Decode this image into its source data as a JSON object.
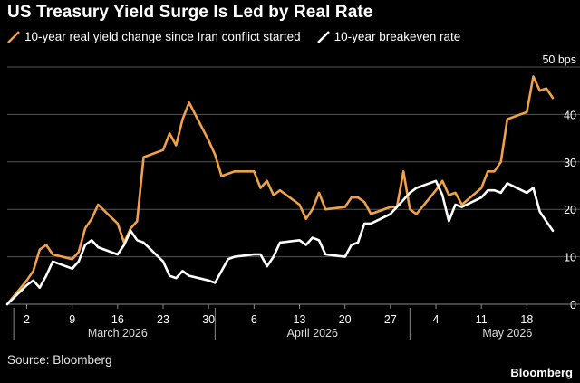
{
  "title": "US Treasury Yield Surge Is Led by Real Rate",
  "source": "Source: Bloomberg",
  "brand": "Bloomberg",
  "colors": {
    "background": "#000000",
    "orange": "#f0a14a",
    "white": "#ffffff",
    "grid": "#555555"
  },
  "chart_data": {
    "type": "line",
    "y_unit": "bps",
    "ylim": [
      0,
      50
    ],
    "yticks": [
      0,
      10,
      20,
      30,
      40,
      50
    ],
    "ytick_labels": [
      "0",
      "10",
      "20",
      "30",
      "40",
      "50 bps"
    ],
    "grid": true,
    "legend_position": "top",
    "xlim": [
      "2026-02-27",
      "2026-05-22"
    ],
    "xticks": [
      {
        "date": "2026-03-02",
        "label": "2"
      },
      {
        "date": "2026-03-09",
        "label": "9"
      },
      {
        "date": "2026-03-16",
        "label": "16"
      },
      {
        "date": "2026-03-23",
        "label": "23"
      },
      {
        "date": "2026-03-30",
        "label": "30"
      },
      {
        "date": "2026-04-06",
        "label": "6"
      },
      {
        "date": "2026-04-13",
        "label": "13"
      },
      {
        "date": "2026-04-20",
        "label": "20"
      },
      {
        "date": "2026-04-27",
        "label": "27"
      },
      {
        "date": "2026-05-04",
        "label": "4"
      },
      {
        "date": "2026-05-11",
        "label": "11"
      },
      {
        "date": "2026-05-18",
        "label": "18"
      }
    ],
    "month_labels": [
      {
        "label": "March 2026",
        "center": "2026-03-16"
      },
      {
        "label": "April 2026",
        "center": "2026-04-15"
      },
      {
        "label": "May 2026",
        "center": "2026-05-15"
      }
    ],
    "month_separators": [
      "2026-02-28",
      "2026-03-31",
      "2026-04-30"
    ],
    "series": [
      {
        "name": "10-year real yield change since Iran conflict started",
        "color": "#f0a14a",
        "points": [
          [
            "2026-02-27",
            0
          ],
          [
            "2026-03-02",
            5
          ],
          [
            "2026-03-03",
            7
          ],
          [
            "2026-03-04",
            11.5
          ],
          [
            "2026-03-05",
            12.5
          ],
          [
            "2026-03-06",
            10.5
          ],
          [
            "2026-03-09",
            9.5
          ],
          [
            "2026-03-10",
            11
          ],
          [
            "2026-03-11",
            16
          ],
          [
            "2026-03-12",
            18
          ],
          [
            "2026-03-13",
            21
          ],
          [
            "2026-03-16",
            17
          ],
          [
            "2026-03-17",
            13
          ],
          [
            "2026-03-18",
            16
          ],
          [
            "2026-03-19",
            17.5
          ],
          [
            "2026-03-20",
            31
          ],
          [
            "2026-03-23",
            32.5
          ],
          [
            "2026-03-24",
            36
          ],
          [
            "2026-03-25",
            33.5
          ],
          [
            "2026-03-26",
            39
          ],
          [
            "2026-03-27",
            42.5
          ],
          [
            "2026-03-30",
            34.5
          ],
          [
            "2026-03-31",
            31.5
          ],
          [
            "2026-04-01",
            27
          ],
          [
            "2026-04-02",
            27.5
          ],
          [
            "2026-04-03",
            28
          ],
          [
            "2026-04-06",
            28
          ],
          [
            "2026-04-07",
            24.5
          ],
          [
            "2026-04-08",
            26
          ],
          [
            "2026-04-09",
            23
          ],
          [
            "2026-04-10",
            24
          ],
          [
            "2026-04-13",
            21
          ],
          [
            "2026-04-14",
            18
          ],
          [
            "2026-04-15",
            20
          ],
          [
            "2026-04-16",
            23.5
          ],
          [
            "2026-04-17",
            20
          ],
          [
            "2026-04-20",
            20.5
          ],
          [
            "2026-04-21",
            22.5
          ],
          [
            "2026-04-22",
            22.5
          ],
          [
            "2026-04-23",
            21.5
          ],
          [
            "2026-04-24",
            19
          ],
          [
            "2026-04-27",
            20.5
          ],
          [
            "2026-04-28",
            20.5
          ],
          [
            "2026-04-29",
            28
          ],
          [
            "2026-04-30",
            20
          ],
          [
            "2026-05-01",
            19
          ],
          [
            "2026-05-04",
            24
          ],
          [
            "2026-05-05",
            26
          ],
          [
            "2026-05-06",
            23
          ],
          [
            "2026-05-07",
            23.5
          ],
          [
            "2026-05-08",
            21
          ],
          [
            "2026-05-11",
            24.5
          ],
          [
            "2026-05-12",
            28
          ],
          [
            "2026-05-13",
            28
          ],
          [
            "2026-05-14",
            30
          ],
          [
            "2026-05-15",
            39
          ],
          [
            "2026-05-18",
            40.5
          ],
          [
            "2026-05-19",
            48
          ],
          [
            "2026-05-20",
            45
          ],
          [
            "2026-05-21",
            45.5
          ],
          [
            "2026-05-22",
            43.5
          ]
        ]
      },
      {
        "name": "10-year breakeven rate",
        "color": "#ffffff",
        "points": [
          [
            "2026-02-27",
            0
          ],
          [
            "2026-03-02",
            4
          ],
          [
            "2026-03-03",
            5
          ],
          [
            "2026-03-04",
            3.5
          ],
          [
            "2026-03-05",
            6
          ],
          [
            "2026-03-06",
            9
          ],
          [
            "2026-03-09",
            7.5
          ],
          [
            "2026-03-10",
            9
          ],
          [
            "2026-03-11",
            12.5
          ],
          [
            "2026-03-12",
            13.5
          ],
          [
            "2026-03-13",
            12
          ],
          [
            "2026-03-16",
            10.5
          ],
          [
            "2026-03-17",
            12.5
          ],
          [
            "2026-03-18",
            15.5
          ],
          [
            "2026-03-19",
            13.5
          ],
          [
            "2026-03-20",
            13
          ],
          [
            "2026-03-23",
            9
          ],
          [
            "2026-03-24",
            6
          ],
          [
            "2026-03-25",
            5.5
          ],
          [
            "2026-03-26",
            7
          ],
          [
            "2026-03-27",
            6
          ],
          [
            "2026-03-30",
            5
          ],
          [
            "2026-03-31",
            4.5
          ],
          [
            "2026-04-01",
            7
          ],
          [
            "2026-04-02",
            9.5
          ],
          [
            "2026-04-03",
            10
          ],
          [
            "2026-04-06",
            10.5
          ],
          [
            "2026-04-07",
            10.5
          ],
          [
            "2026-04-08",
            8
          ],
          [
            "2026-04-09",
            10
          ],
          [
            "2026-04-10",
            13
          ],
          [
            "2026-04-13",
            13.5
          ],
          [
            "2026-04-14",
            12.5
          ],
          [
            "2026-04-15",
            14
          ],
          [
            "2026-04-16",
            13.5
          ],
          [
            "2026-04-17",
            10.5
          ],
          [
            "2026-04-20",
            10
          ],
          [
            "2026-04-21",
            12.5
          ],
          [
            "2026-04-22",
            13
          ],
          [
            "2026-04-23",
            17
          ],
          [
            "2026-04-24",
            17
          ],
          [
            "2026-04-27",
            19
          ],
          [
            "2026-04-28",
            20.5
          ],
          [
            "2026-04-29",
            22
          ],
          [
            "2026-04-30",
            23.5
          ],
          [
            "2026-05-01",
            24.5
          ],
          [
            "2026-05-04",
            26
          ],
          [
            "2026-05-05",
            23
          ],
          [
            "2026-05-06",
            17.5
          ],
          [
            "2026-05-07",
            21
          ],
          [
            "2026-05-08",
            20.5
          ],
          [
            "2026-05-11",
            22.5
          ],
          [
            "2026-05-12",
            24
          ],
          [
            "2026-05-13",
            24
          ],
          [
            "2026-05-14",
            23.5
          ],
          [
            "2026-05-15",
            25.5
          ],
          [
            "2026-05-18",
            23.5
          ],
          [
            "2026-05-19",
            24.5
          ],
          [
            "2026-05-20",
            19.5
          ],
          [
            "2026-05-21",
            17.5
          ],
          [
            "2026-05-22",
            15.5
          ]
        ]
      }
    ]
  }
}
